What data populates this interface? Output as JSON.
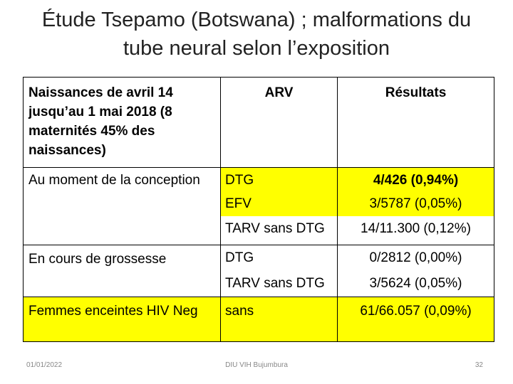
{
  "title": {
    "line1": "Étude Tsepamo (Botswana) ; malformations du",
    "line2": "tube neural selon l’exposition"
  },
  "table": {
    "header": {
      "col1": "Naissances de avril 14 jusqu’au 1 mai 2018 (8 maternités 45% des naissances)",
      "col2": "ARV",
      "col3": "Résultats"
    },
    "groups": [
      {
        "label": "Au moment de la conception",
        "rows": [
          {
            "arv": "DTG",
            "result": "4/426 (0,94%)"
          },
          {
            "arv": "EFV",
            "result": "3/5787 (0,05%)"
          },
          {
            "arv": "TARV sans DTG",
            "result": "14/11.300 (0,12%)"
          }
        ]
      },
      {
        "label": "En cours de grossesse",
        "rows": [
          {
            "arv": "DTG",
            "result": "0/2812 (0,00%)"
          },
          {
            "arv": "TARV sans DTG",
            "result": "3/5624 (0,05%)"
          }
        ]
      },
      {
        "label": "Femmes enceintes HIV Neg",
        "rows": [
          {
            "arv": "sans",
            "result": "61/66.057 (0,09%)"
          }
        ]
      }
    ]
  },
  "footer": {
    "date": "01/01/2022",
    "center": "DIU VIH Bujumbura",
    "page": "32"
  },
  "colors": {
    "highlight": "#ffff00"
  }
}
